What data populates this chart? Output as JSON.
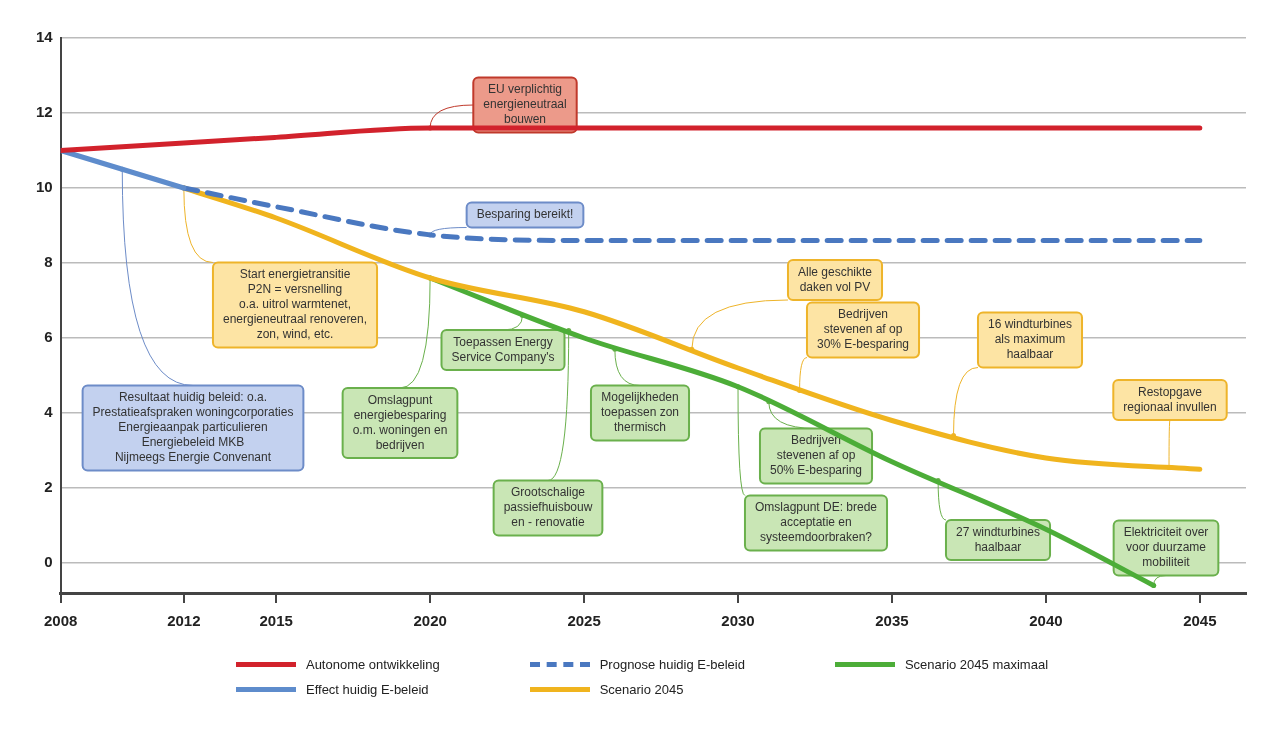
{
  "chart_data": {
    "type": "line",
    "xlim": [
      2008,
      2046.5
    ],
    "xticks": [
      2008,
      2012,
      2015,
      2020,
      2025,
      2030,
      2035,
      2040,
      2045
    ],
    "ylim": [
      -0.8,
      14
    ],
    "yticks": [
      0,
      2,
      4,
      6,
      8,
      10,
      12,
      14
    ],
    "grid": "y",
    "legend": "bottom",
    "marker": "none",
    "series": [
      {
        "name": "Autonome ontwikkeling",
        "color": "#d2222c",
        "x": [
          2008,
          2012,
          2015,
          2020,
          2025,
          2030,
          2035,
          2040,
          2045
        ],
        "values": [
          11,
          11.2,
          11.35,
          11.6,
          11.6,
          11.6,
          11.6,
          11.6,
          11.6
        ]
      },
      {
        "name": "Effect huidig E-beleid",
        "color": "#5e8ccc",
        "x": [
          2008,
          2012
        ],
        "values": [
          11,
          10
        ]
      },
      {
        "name": "Prognose huidig E-beleid",
        "color": "#4a78c0",
        "line_style": "dashed",
        "x": [
          2012,
          2015,
          2020,
          2025,
          2030,
          2035,
          2040,
          2045
        ],
        "values": [
          10,
          9.5,
          8.75,
          8.6,
          8.6,
          8.6,
          8.6,
          8.6
        ]
      },
      {
        "name": "Scenario 2045",
        "color": "#f0b41e",
        "x": [
          2012,
          2015,
          2020,
          2025,
          2030,
          2035,
          2040,
          2045
        ],
        "values": [
          10,
          9.2,
          7.6,
          6.7,
          5.2,
          3.8,
          2.8,
          2.5
        ]
      },
      {
        "name": "Scenario 2045 maximaal",
        "color": "#4cad38",
        "x": [
          2020,
          2025,
          2030,
          2035,
          2040,
          2043.5
        ],
        "values": [
          7.6,
          6.0,
          4.7,
          2.7,
          0.9,
          -0.6
        ]
      }
    ],
    "annotations": [
      {
        "text": "EU verplichtig\nenergieneutraal\nbouwen",
        "x": 2020,
        "y": 11.6
      },
      {
        "text": "Besparing bereikt!",
        "x": 2020,
        "y": 8.75
      },
      {
        "text": "Resultaat huidig beleid: o.a.\nPrestatieafspraken woningcorporaties\nEnergieaanpak particulieren\nEnergiebeleid MKB\nNijmeegs Energie Convenant",
        "x": 2010,
        "y": 10.5
      },
      {
        "text": "Start energietransitie\nP2N = versnelling\no.a. uitrol warmtenet,\nenergieneutraal renoveren,\nzon, wind, etc.",
        "x": 2012,
        "y": 10
      },
      {
        "text": "Toepassen Energy\nService Company's",
        "x": 2023,
        "y": 6.6
      },
      {
        "text": "Omslagpunt\nenergiebesparing\no.m. woningen en\nbedrijven",
        "x": 2020,
        "y": 7.6
      },
      {
        "text": "Grootschalige\npassiefhuisbouw\nen - renovatie",
        "x": 2024.5,
        "y": 6.2
      },
      {
        "text": "Mogelijkheden\ntoepassen zon\nthermisch",
        "x": 2026,
        "y": 5.7
      },
      {
        "text": "Alle geschikte\ndaken vol PV",
        "x": 2028.5,
        "y": 5.7
      },
      {
        "text": "Bedrijven\nstevenen af op\n30% E-besparing",
        "x": 2032,
        "y": 4.6
      },
      {
        "text": "16 windturbines\nals maximum\nhaalbaar",
        "x": 2037,
        "y": 3.4
      },
      {
        "text": "Restopgave\nregionaal invullen",
        "x": 2044,
        "y": 2.55
      },
      {
        "text": "Bedrijven\nstevenen af op\n50% E-besparing",
        "x": 2031,
        "y": 4.3
      },
      {
        "text": "Omslagpunt DE: brede\nacceptatie en\nsysteemdoorbraken?",
        "x": 2030,
        "y": 4.7
      },
      {
        "text": "27 windturbines\nhaalbaar",
        "x": 2036.5,
        "y": 2.2
      },
      {
        "text": "Elektriciteit over\nvoor duurzame\nmobiliteit",
        "x": 2043.5,
        "y": -0.6
      }
    ]
  }
}
